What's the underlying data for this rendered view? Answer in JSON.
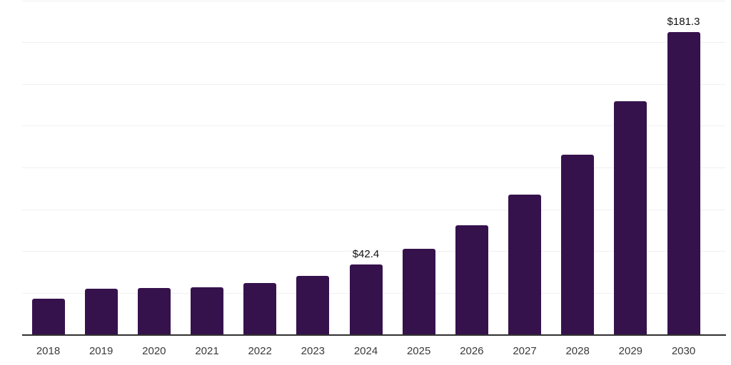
{
  "chart_data": {
    "type": "bar",
    "title": "",
    "xlabel": "",
    "ylabel": "",
    "categories": [
      "2018",
      "2019",
      "2020",
      "2021",
      "2022",
      "2023",
      "2024",
      "2025",
      "2026",
      "2027",
      "2028",
      "2029",
      "2030"
    ],
    "values": [
      21.6,
      27.7,
      28.1,
      28.7,
      31.0,
      35.5,
      42.4,
      51.7,
      65.8,
      84.2,
      108.1,
      139.9,
      181.3
    ],
    "value_labels": [
      {
        "category": "2024",
        "text": "$42.4"
      },
      {
        "category": "2030",
        "text": "$181.3"
      }
    ],
    "ylim": [
      0,
      200
    ],
    "grid_step": 25,
    "grid": true,
    "y_tick_labels_visible": false,
    "legend_position": "none"
  },
  "style": {
    "background": "#ffffff",
    "bar_color": "#36124d",
    "grid_color": "#f0f0f0",
    "axis_color": "#303030",
    "tick_label_color": "#3a3a3a",
    "value_label_color": "#111111"
  }
}
